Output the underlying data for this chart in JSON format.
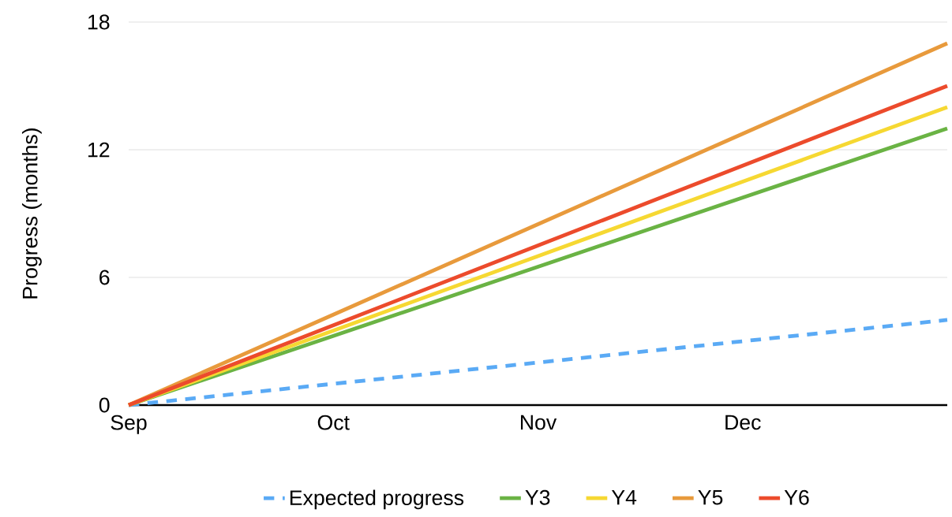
{
  "chart_data": {
    "type": "line",
    "ylabel": "Progress (months)",
    "categories": [
      "Sep",
      "Oct",
      "Nov",
      "Dec",
      null
    ],
    "ylim": [
      0,
      18
    ],
    "yticks": [
      0,
      6,
      12,
      18
    ],
    "grid": "y",
    "legend": "bottom",
    "marker": "none",
    "line_style": "solid",
    "series": [
      {
        "name": "Expected progress",
        "color": "#5aaaf5",
        "line_style": "dashed",
        "values": [
          0,
          1,
          2,
          3,
          4
        ]
      },
      {
        "name": "Y3",
        "color": "#6ab344",
        "values": [
          0,
          3.25,
          6.5,
          9.75,
          13
        ]
      },
      {
        "name": "Y4",
        "color": "#f6d832",
        "values": [
          0,
          3.5,
          7,
          10.5,
          14
        ]
      },
      {
        "name": "Y5",
        "color": "#e89a3c",
        "values": [
          0,
          4.25,
          8.5,
          12.75,
          17
        ]
      },
      {
        "name": "Y6",
        "color": "#ec4b2c",
        "values": [
          0,
          3.75,
          7.5,
          11.25,
          15
        ]
      }
    ]
  }
}
